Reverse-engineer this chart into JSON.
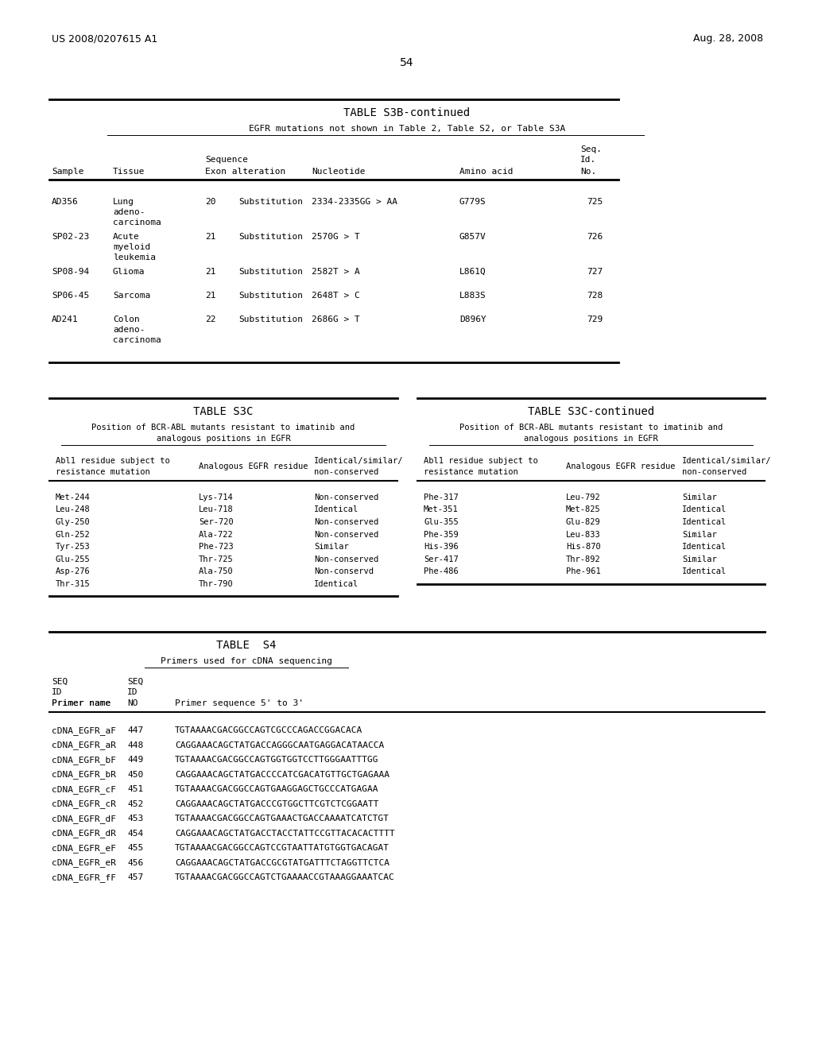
{
  "page_number": "54",
  "patent_left": "US 2008/0207615 A1",
  "patent_right": "Aug. 28, 2008",
  "table_s3b": {
    "title": "TABLE S3B-continued",
    "subtitle": "EGFR mutations not shown in Table 2, Table S2, or Table S3A",
    "rows": [
      [
        "AD356",
        "Lung\nadeno-\ncarcinoma",
        "20",
        "Substitution",
        "2334-2335GG > AA",
        "G779S",
        "725"
      ],
      [
        "SP02-23",
        "Acute\nmyeloid\nleukemia",
        "21",
        "Substitution",
        "2570G > T",
        "G857V",
        "726"
      ],
      [
        "SP08-94",
        "Glioma",
        "21",
        "Substitution",
        "2582T > A",
        "L861Q",
        "727"
      ],
      [
        "SP06-45",
        "Sarcoma",
        "21",
        "Substitution",
        "2648T > C",
        "L883S",
        "728"
      ],
      [
        "AD241",
        "Colon\nadeno-\ncarcinoma",
        "22",
        "Substitution",
        "2686G > T",
        "D896Y",
        "729"
      ]
    ]
  },
  "table_s3c_left": {
    "title": "TABLE S3C",
    "subtitle": "Position of BCR-ABL mutants resistant to imatinib and\nanalogous positions in EGFR",
    "rows": [
      [
        "Met-244",
        "Lys-714",
        "Non-conserved"
      ],
      [
        "Leu-248",
        "Leu-718",
        "Identical"
      ],
      [
        "Gly-250",
        "Ser-720",
        "Non-conserved"
      ],
      [
        "Gln-252",
        "Ala-722",
        "Non-conserved"
      ],
      [
        "Tyr-253",
        "Phe-723",
        "Similar"
      ],
      [
        "Glu-255",
        "Thr-725",
        "Non-conserved"
      ],
      [
        "Asp-276",
        "Ala-750",
        "Non-conservd"
      ],
      [
        "Thr-315",
        "Thr-790",
        "Identical"
      ]
    ]
  },
  "table_s3c_right": {
    "title": "TABLE S3C-continued",
    "subtitle": "Position of BCR-ABL mutants resistant to imatinib and\nanalogous positions in EGFR",
    "rows": [
      [
        "Phe-317",
        "Leu-792",
        "Similar"
      ],
      [
        "Met-351",
        "Met-825",
        "Identical"
      ],
      [
        "Glu-355",
        "Glu-829",
        "Identical"
      ],
      [
        "Phe-359",
        "Leu-833",
        "Similar"
      ],
      [
        "His-396",
        "His-870",
        "Identical"
      ],
      [
        "Ser-417",
        "Thr-892",
        "Similar"
      ],
      [
        "Phe-486",
        "Phe-961",
        "Identical"
      ]
    ]
  },
  "table_s4": {
    "title": "TABLE  S4",
    "subtitle": "Primers used for cDNA sequencing",
    "rows": [
      [
        "cDNA_EGFR_aF",
        "447",
        "TGTAAAACGACGGCCAGTCGCCCAGACCGGACACA"
      ],
      [
        "cDNA_EGFR_aR",
        "448",
        "CAGGAAACAGCTATGACCAGGGCAATGAGGACATAACCA"
      ],
      [
        "cDNA_EGFR_bF",
        "449",
        "TGTAAAACGACGGCCAGTGGTGGTCCTTGGGAATTTGG"
      ],
      [
        "cDNA_EGFR_bR",
        "450",
        "CAGGAAACAGCTATGACCCCATCGACATGTTGCTGAGAAA"
      ],
      [
        "cDNA_EGFR_cF",
        "451",
        "TGTAAAACGACGGCCAGTGAAGGAGCTGCCCATGAGAA"
      ],
      [
        "cDNA_EGFR_cR",
        "452",
        "CAGGAAACAGCTATGACCCGTGGCTTCGTCTCGGAATT"
      ],
      [
        "cDNA_EGFR_dF",
        "453",
        "TGTAAAACGACGGCCAGTGAAACTGACCAAAATCATCTGT"
      ],
      [
        "cDNA_EGFR_dR",
        "454",
        "CAGGAAACAGCTATGACCTACCTATTCCGTTACACACTTTT"
      ],
      [
        "cDNA_EGFR_eF",
        "455",
        "TGTAAAACGACGGCCAGTCCGTAATTATGTGGTGACAGAT"
      ],
      [
        "cDNA_EGFR_eR",
        "456",
        "CAGGAAACAGCTATGACCGCGTATGATTTCTAGGTTCTCA"
      ],
      [
        "cDNA_EGFR_fF",
        "457",
        "TGTAAAACGACGGCCAGTCTGAAAACCGTAAAGGAAATCAC"
      ]
    ]
  }
}
